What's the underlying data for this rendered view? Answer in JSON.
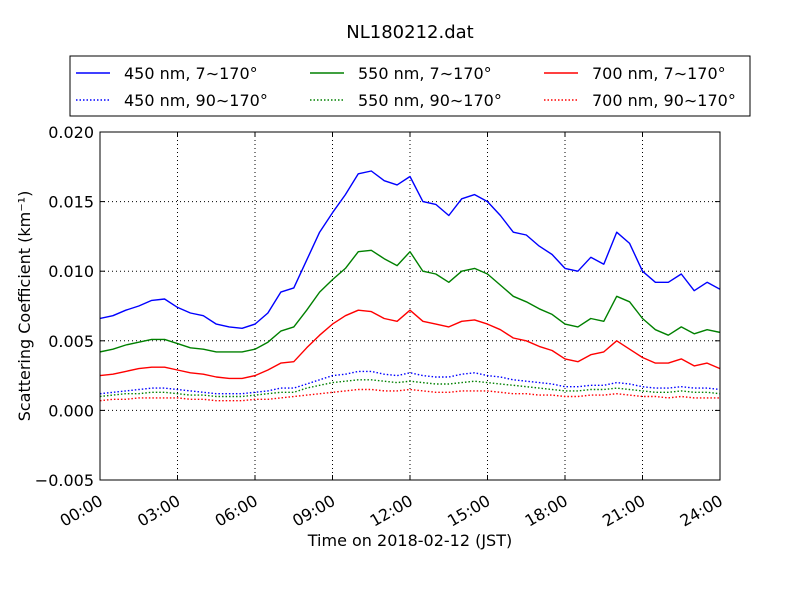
{
  "chart_data": {
    "type": "line",
    "title": "NL180212.dat",
    "xlabel": "Time on 2018-02-12 (JST)",
    "ylabel": "Scattering Coefficient (km⁻¹)",
    "xlim": [
      0,
      24
    ],
    "ylim": [
      -0.005,
      0.02
    ],
    "x_ticks": [
      "00:00",
      "03:00",
      "06:00",
      "09:00",
      "12:00",
      "15:00",
      "18:00",
      "21:00",
      "24:00"
    ],
    "y_ticks": [
      "−0.005",
      "0.000",
      "0.005",
      "0.010",
      "0.015",
      "0.020"
    ],
    "grid": true,
    "legend_position": "top, outside plot area",
    "x": [
      0,
      0.5,
      1,
      1.5,
      2,
      2.5,
      3,
      3.5,
      4,
      4.5,
      5,
      5.5,
      6,
      6.5,
      7,
      7.5,
      8,
      8.5,
      9,
      9.5,
      10,
      10.5,
      11,
      11.5,
      12,
      12.5,
      13,
      13.5,
      14,
      14.5,
      15,
      15.5,
      16,
      16.5,
      17,
      17.5,
      18,
      18.5,
      19,
      19.5,
      20,
      20.5,
      21,
      21.5,
      22,
      22.5,
      23,
      23.5,
      24
    ],
    "series": [
      {
        "name": "450 nm, 7∼170°",
        "color": "#0000ff",
        "style": "solid",
        "values": [
          0.0066,
          0.0068,
          0.0072,
          0.0075,
          0.0079,
          0.008,
          0.0074,
          0.007,
          0.0068,
          0.0062,
          0.006,
          0.0059,
          0.0062,
          0.007,
          0.0085,
          0.0088,
          0.0108,
          0.0128,
          0.0142,
          0.0155,
          0.017,
          0.0172,
          0.0165,
          0.0162,
          0.0168,
          0.015,
          0.0148,
          0.014,
          0.0152,
          0.0155,
          0.015,
          0.014,
          0.0128,
          0.0126,
          0.0118,
          0.0112,
          0.0102,
          0.01,
          0.011,
          0.0105,
          0.0128,
          0.012,
          0.01,
          0.0092,
          0.0092,
          0.0098,
          0.0086,
          0.0092,
          0.0087
        ]
      },
      {
        "name": "550 nm, 7∼170°",
        "color": "#008000",
        "style": "solid",
        "values": [
          0.0042,
          0.0044,
          0.0047,
          0.0049,
          0.0051,
          0.0051,
          0.0048,
          0.0045,
          0.0044,
          0.0042,
          0.0042,
          0.0042,
          0.0044,
          0.0049,
          0.0057,
          0.006,
          0.0072,
          0.0085,
          0.0094,
          0.0102,
          0.0114,
          0.0115,
          0.0109,
          0.0104,
          0.0114,
          0.01,
          0.0098,
          0.0092,
          0.01,
          0.0102,
          0.0098,
          0.009,
          0.0082,
          0.0078,
          0.0073,
          0.0069,
          0.0062,
          0.006,
          0.0066,
          0.0064,
          0.0082,
          0.0078,
          0.0066,
          0.0058,
          0.0054,
          0.006,
          0.0055,
          0.0058,
          0.0056
        ]
      },
      {
        "name": "700 nm, 7∼170°",
        "color": "#ff0000",
        "style": "solid",
        "values": [
          0.0025,
          0.0026,
          0.0028,
          0.003,
          0.0031,
          0.0031,
          0.0029,
          0.0027,
          0.0026,
          0.0024,
          0.0023,
          0.0023,
          0.0025,
          0.0029,
          0.0034,
          0.0035,
          0.0045,
          0.0054,
          0.0062,
          0.0068,
          0.0072,
          0.0071,
          0.0066,
          0.0064,
          0.0072,
          0.0064,
          0.0062,
          0.006,
          0.0064,
          0.0065,
          0.0062,
          0.0058,
          0.0052,
          0.005,
          0.0046,
          0.0043,
          0.0037,
          0.0035,
          0.004,
          0.0042,
          0.005,
          0.0044,
          0.0038,
          0.0034,
          0.0034,
          0.0037,
          0.0032,
          0.0034,
          0.003
        ]
      },
      {
        "name": "450 nm, 90∼170°",
        "color": "#0000ff",
        "style": "dotted",
        "values": [
          0.0012,
          0.0013,
          0.0014,
          0.0015,
          0.0016,
          0.0016,
          0.0015,
          0.0014,
          0.0013,
          0.0012,
          0.0012,
          0.0012,
          0.0013,
          0.0014,
          0.0016,
          0.0016,
          0.0019,
          0.0022,
          0.0025,
          0.0026,
          0.0028,
          0.0028,
          0.0026,
          0.0025,
          0.0027,
          0.0025,
          0.0024,
          0.0024,
          0.0026,
          0.0027,
          0.0025,
          0.0024,
          0.0022,
          0.0021,
          0.002,
          0.0019,
          0.0017,
          0.0017,
          0.0018,
          0.0018,
          0.002,
          0.0019,
          0.0017,
          0.0016,
          0.0016,
          0.0017,
          0.0016,
          0.0016,
          0.0015
        ]
      },
      {
        "name": "550 nm, 90∼170°",
        "color": "#008000",
        "style": "dotted",
        "values": [
          0.001,
          0.0011,
          0.0012,
          0.0012,
          0.0013,
          0.0013,
          0.0012,
          0.0011,
          0.0011,
          0.001,
          0.001,
          0.001,
          0.0011,
          0.0012,
          0.0013,
          0.0013,
          0.0016,
          0.0018,
          0.002,
          0.0021,
          0.0022,
          0.0022,
          0.0021,
          0.002,
          0.0021,
          0.002,
          0.0019,
          0.0019,
          0.002,
          0.0021,
          0.002,
          0.0019,
          0.0018,
          0.0017,
          0.0016,
          0.0015,
          0.0014,
          0.0014,
          0.0015,
          0.0015,
          0.0016,
          0.0015,
          0.0014,
          0.0013,
          0.0013,
          0.0014,
          0.0013,
          0.0013,
          0.0012
        ]
      },
      {
        "name": "700 nm, 90∼170°",
        "color": "#ff0000",
        "style": "dotted",
        "values": [
          0.0007,
          0.0008,
          0.0008,
          0.0009,
          0.0009,
          0.0009,
          0.0009,
          0.0008,
          0.0008,
          0.0007,
          0.0007,
          0.0007,
          0.0008,
          0.0008,
          0.0009,
          0.001,
          0.0011,
          0.0012,
          0.0013,
          0.0014,
          0.0015,
          0.0015,
          0.0014,
          0.0014,
          0.0015,
          0.0014,
          0.0013,
          0.0013,
          0.0014,
          0.0014,
          0.0014,
          0.0013,
          0.0012,
          0.0012,
          0.0011,
          0.0011,
          0.001,
          0.001,
          0.0011,
          0.0011,
          0.0012,
          0.0011,
          0.001,
          0.001,
          0.0009,
          0.001,
          0.0009,
          0.0009,
          0.0009
        ]
      }
    ]
  }
}
